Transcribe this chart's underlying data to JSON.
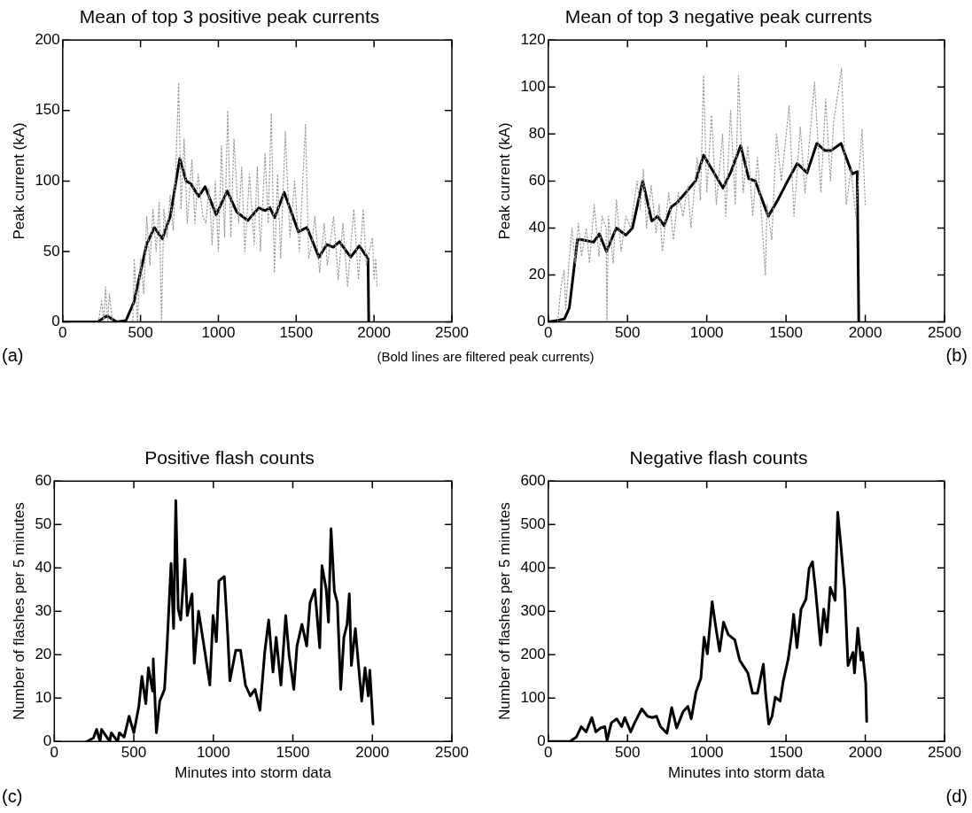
{
  "chart_data": [
    {
      "type": "line",
      "title": "Mean of top 3 positive peak currents",
      "ylabel": "Peak current (kA)",
      "xlim": [
        0,
        2500
      ],
      "xticks": [
        0,
        500,
        1000,
        1500,
        2000,
        2500
      ],
      "ylim": [
        0,
        200
      ],
      "yticks": [
        0,
        50,
        100,
        150,
        200
      ],
      "grid": false,
      "legend": false,
      "marker": "none",
      "annotations": [
        "(a)",
        "(Bold lines are filtered peak currents)"
      ],
      "series": [
        {
          "color": "#9a9a9a",
          "line_style": "dotted",
          "x": [
            0,
            230,
            250,
            265,
            275,
            290,
            300,
            320,
            450,
            460,
            480,
            500,
            520,
            540,
            560,
            580,
            600,
            620,
            635,
            650,
            670,
            690,
            710,
            730,
            745,
            760,
            780,
            800,
            830,
            850,
            870,
            900,
            920,
            940,
            960,
            980,
            1000,
            1020,
            1040,
            1060,
            1080,
            1100,
            1130,
            1150,
            1170,
            1200,
            1230,
            1250,
            1270,
            1300,
            1320,
            1340,
            1360,
            1380,
            1400,
            1430,
            1460,
            1490,
            1520,
            1560,
            1580,
            1600,
            1620,
            1650,
            1680,
            1700,
            1740,
            1770,
            1800,
            1830,
            1870,
            1900,
            1930,
            1950,
            1990,
            2000,
            2010,
            2020
          ],
          "values": [
            0,
            0,
            15,
            0,
            25,
            0,
            20,
            0,
            0,
            45,
            0,
            45,
            20,
            75,
            40,
            80,
            50,
            85,
            0,
            80,
            60,
            90,
            65,
            120,
            170,
            80,
            130,
            70,
            115,
            70,
            105,
            75,
            70,
            95,
            55,
            100,
            50,
            125,
            60,
            150,
            60,
            130,
            70,
            110,
            50,
            105,
            55,
            110,
            50,
            120,
            70,
            148,
            35,
            105,
            45,
            135,
            60,
            100,
            50,
            140,
            45,
            55,
            75,
            35,
            70,
            40,
            75,
            30,
            70,
            25,
            80,
            30,
            80,
            40,
            60,
            30,
            45,
            25
          ]
        },
        {
          "color": "#000000",
          "line_style": "solid",
          "x": [
            0,
            224,
            285,
            346,
            406,
            457,
            539,
            589,
            640,
            691,
            752,
            793,
            823,
            874,
            915,
            986,
            1057,
            1118,
            1189,
            1260,
            1301,
            1331,
            1362,
            1423,
            1514,
            1569,
            1646,
            1697,
            1738,
            1778,
            1850,
            1905,
            1961,
            1966
          ],
          "values": [
            0,
            0,
            4.5,
            0,
            1,
            14,
            55,
            67,
            59,
            75,
            116,
            100,
            98,
            89,
            96,
            76,
            93,
            78,
            72,
            81,
            79,
            81,
            74,
            92,
            64,
            67,
            46,
            55,
            53,
            57,
            46,
            54,
            45,
            0
          ]
        }
      ]
    },
    {
      "type": "line",
      "title": "Mean of top 3 negative peak currents",
      "ylabel": "Peak current (kA)",
      "xlim": [
        0,
        2500
      ],
      "xticks": [
        0,
        500,
        1000,
        1500,
        2000,
        2500
      ],
      "ylim": [
        0,
        120
      ],
      "yticks": [
        0,
        20,
        40,
        60,
        80,
        100,
        120
      ],
      "grid": false,
      "legend": false,
      "marker": "none",
      "annotations": [
        "(b)"
      ],
      "series": [
        {
          "color": "#9a9a9a",
          "line_style": "dotted",
          "x": [
            0,
            60,
            80,
            100,
            110,
            130,
            150,
            170,
            190,
            210,
            240,
            260,
            290,
            320,
            340,
            365,
            370,
            380,
            410,
            430,
            460,
            490,
            520,
            560,
            580,
            600,
            620,
            650,
            680,
            700,
            720,
            760,
            790,
            820,
            850,
            880,
            900,
            940,
            960,
            980,
            1000,
            1030,
            1060,
            1100,
            1120,
            1150,
            1180,
            1200,
            1230,
            1260,
            1290,
            1320,
            1350,
            1370,
            1380,
            1410,
            1440,
            1470,
            1520,
            1550,
            1590,
            1620,
            1680,
            1720,
            1750,
            1780,
            1800,
            1850,
            1880,
            1910,
            1940,
            1980,
            2000
          ],
          "values": [
            0,
            0,
            15,
            22,
            5,
            25,
            40,
            25,
            42,
            28,
            40,
            25,
            50,
            28,
            45,
            40,
            0,
            45,
            25,
            52,
            30,
            45,
            40,
            60,
            48,
            65,
            40,
            58,
            38,
            50,
            30,
            55,
            35,
            55,
            45,
            58,
            40,
            70,
            52,
            105,
            55,
            88,
            50,
            80,
            45,
            90,
            50,
            105,
            55,
            75,
            45,
            70,
            40,
            20,
            50,
            35,
            80,
            60,
            92,
            45,
            83,
            55,
            102,
            55,
            95,
            60,
            85,
            108,
            50,
            65,
            45,
            82,
            50
          ]
        },
        {
          "color": "#000000",
          "line_style": "solid",
          "x": [
            0,
            51,
            102,
            133,
            184,
            214,
            286,
            322,
            367,
            429,
            490,
            531,
            596,
            653,
            690,
            731,
            776,
            816,
            929,
            980,
            1041,
            1102,
            1153,
            1214,
            1265,
            1306,
            1388,
            1449,
            1510,
            1571,
            1633,
            1694,
            1745,
            1786,
            1847,
            1918,
            1949,
            1959
          ],
          "values": [
            0,
            0.6,
            1.3,
            6,
            35,
            35,
            34,
            37.5,
            30,
            40,
            37,
            40,
            60,
            43,
            45,
            41,
            49,
            51,
            60,
            71,
            64,
            57,
            64,
            75,
            61,
            60,
            45,
            52,
            60,
            67.5,
            63.5,
            76,
            73,
            73,
            76,
            63,
            64,
            0
          ]
        }
      ]
    },
    {
      "type": "line",
      "title": "Positive flash counts",
      "xlabel": "Minutes into storm data",
      "ylabel": "Number of flashes per 5 minutes",
      "xlim": [
        0,
        2500
      ],
      "xticks": [
        0,
        500,
        1000,
        1500,
        2000,
        2500
      ],
      "ylim": [
        0,
        60
      ],
      "yticks": [
        0,
        10,
        20,
        30,
        40,
        50,
        60
      ],
      "grid": false,
      "legend": false,
      "marker": "none",
      "annotations": [
        "(c)"
      ],
      "series": [
        {
          "color": "#000000",
          "line_style": "solid",
          "x": [
            205,
            246,
            266,
            287,
            297,
            348,
            358,
            398,
            409,
            439,
            470,
            500,
            531,
            551,
            575,
            592,
            618,
            622,
            642,
            663,
            693,
            709,
            734,
            750,
            764,
            779,
            795,
            821,
            836,
            866,
            880,
            907,
            937,
            978,
            998,
            1019,
            1035,
            1069,
            1090,
            1104,
            1141,
            1171,
            1202,
            1232,
            1262,
            1293,
            1323,
            1348,
            1375,
            1395,
            1425,
            1455,
            1476,
            1506,
            1526,
            1557,
            1587,
            1608,
            1638,
            1669,
            1683,
            1710,
            1724,
            1740,
            1761,
            1780,
            1801,
            1821,
            1841,
            1855,
            1868,
            1893,
            1913,
            1933,
            1954,
            1974,
            1984,
            2004
          ],
          "values": [
            0,
            0.8,
            2.8,
            0,
            2.8,
            0,
            2,
            0,
            2,
            1,
            5.8,
            2,
            8,
            15,
            8.7,
            17,
            11.6,
            19,
            2,
            9.3,
            12,
            22,
            41,
            26,
            55.5,
            30.5,
            28,
            42,
            29,
            34,
            18,
            30,
            23,
            13,
            29,
            23,
            37,
            38,
            25,
            14,
            21,
            21,
            13,
            10.5,
            12,
            7.2,
            20.5,
            28,
            16,
            24,
            13,
            29,
            20,
            12,
            22,
            27,
            22,
            32,
            35,
            21.6,
            40.5,
            35,
            27.5,
            49,
            34.6,
            32,
            12,
            24,
            27,
            34,
            17.5,
            26,
            17.5,
            9.3,
            17,
            10.5,
            16.4,
            4
          ]
        }
      ]
    },
    {
      "type": "line",
      "title": "Negative flash counts",
      "xlabel": "Minutes into storm data",
      "ylabel": "Number of flashes per 5 minutes",
      "xlim": [
        0,
        2500
      ],
      "xticks": [
        0,
        500,
        1000,
        1500,
        2000,
        2500
      ],
      "ylim": [
        0,
        600
      ],
      "yticks": [
        0,
        100,
        200,
        300,
        400,
        500,
        600
      ],
      "grid": false,
      "legend": false,
      "marker": "none",
      "annotations": [
        "(d)"
      ],
      "series": [
        {
          "color": "#000000",
          "line_style": "solid",
          "x": [
            0,
            137,
            177,
            208,
            239,
            275,
            300,
            330,
            357,
            371,
            398,
            432,
            463,
            483,
            520,
            545,
            590,
            626,
            657,
            683,
            708,
            749,
            779,
            810,
            851,
            881,
            902,
            932,
            963,
            983,
            1004,
            1034,
            1055,
            1081,
            1106,
            1136,
            1177,
            1208,
            1259,
            1289,
            1320,
            1357,
            1371,
            1391,
            1412,
            1432,
            1463,
            1483,
            1514,
            1534,
            1548,
            1569,
            1595,
            1626,
            1646,
            1667,
            1687,
            1718,
            1738,
            1759,
            1779,
            1810,
            1826,
            1846,
            1871,
            1891,
            1922,
            1932,
            1953,
            1973,
            1983,
            2003,
            2009
          ],
          "values": [
            0,
            0,
            10,
            34,
            22,
            55,
            22,
            31,
            34,
            2,
            43,
            52,
            34,
            55,
            22,
            43,
            75,
            58,
            55,
            58,
            34,
            19,
            78,
            31,
            69,
            81,
            52,
            114,
            146,
            240,
            202,
            322,
            268,
            208,
            275,
            246,
            234,
            187,
            158,
            111,
            111,
            178,
            111,
            40,
            58,
            102,
            93,
            140,
            190,
            243,
            293,
            216,
            305,
            328,
            399,
            414,
            346,
            222,
            305,
            252,
            355,
            325,
            528,
            452,
            346,
            175,
            205,
            158,
            261,
            187,
            205,
            134,
            46
          ]
        }
      ]
    }
  ]
}
